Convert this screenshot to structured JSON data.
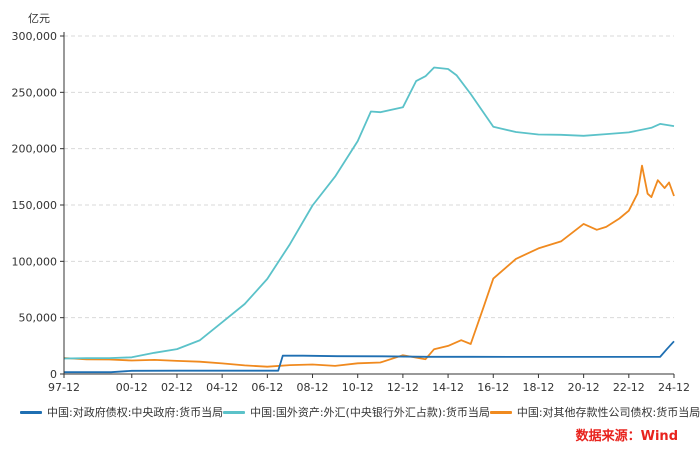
{
  "chart_data": {
    "type": "line",
    "unit": "亿元",
    "colors": {
      "gov": "#1f6fb2",
      "fx": "#5bc2c9",
      "other": "#f08a1f"
    },
    "ylim": [
      0,
      300000
    ],
    "yticks": [
      0,
      50000,
      100000,
      150000,
      200000,
      250000,
      300000
    ],
    "ytick_labels": [
      "0",
      "50,000",
      "100,000",
      "150,000",
      "200,000",
      "250,000",
      "300,000"
    ],
    "xlim": [
      1997.917,
      2024.917
    ],
    "xtick_values": [
      1997.917,
      2000.917,
      2002.917,
      2004.917,
      2006.917,
      2008.917,
      2010.917,
      2012.917,
      2014.917,
      2016.917,
      2018.917,
      2020.917,
      2022.917,
      2024.917
    ],
    "xtick_labels": [
      "97-12",
      "00-12",
      "02-12",
      "04-12",
      "06-12",
      "08-12",
      "10-12",
      "12-12",
      "14-12",
      "16-12",
      "18-12",
      "20-12",
      "22-12",
      "24-12"
    ],
    "series": [
      {
        "key": "gov",
        "name": "中国:对政府债权:中央政府:货币当局",
        "points": [
          [
            1997.917,
            1600
          ],
          [
            2000.0,
            1600
          ],
          [
            2000.917,
            2800
          ],
          [
            2003.0,
            2900
          ],
          [
            2006.5,
            2900
          ],
          [
            2007.4,
            2900
          ],
          [
            2007.6,
            16300
          ],
          [
            2008.5,
            16200
          ],
          [
            2010.0,
            15800
          ],
          [
            2012.0,
            15700
          ],
          [
            2014.0,
            15300
          ],
          [
            2016.0,
            15300
          ],
          [
            2018.0,
            15200
          ],
          [
            2020.0,
            15200
          ],
          [
            2022.0,
            15200
          ],
          [
            2024.3,
            15200
          ],
          [
            2024.6,
            22000
          ],
          [
            2024.917,
            29000
          ]
        ]
      },
      {
        "key": "fx",
        "name": "中国:国外资产:外汇(中央银行外汇占款):货币当局",
        "points": [
          [
            1997.917,
            13800
          ],
          [
            1998.917,
            14000
          ],
          [
            1999.917,
            14100
          ],
          [
            2000.917,
            14800
          ],
          [
            2001.917,
            18800
          ],
          [
            2002.917,
            22100
          ],
          [
            2003.917,
            29800
          ],
          [
            2004.917,
            45900
          ],
          [
            2005.917,
            62100
          ],
          [
            2006.917,
            84400
          ],
          [
            2007.917,
            115200
          ],
          [
            2008.917,
            149600
          ],
          [
            2009.917,
            175200
          ],
          [
            2010.917,
            206700
          ],
          [
            2011.5,
            233000
          ],
          [
            2011.917,
            232400
          ],
          [
            2012.917,
            236700
          ],
          [
            2013.5,
            260000
          ],
          [
            2013.917,
            264300
          ],
          [
            2014.3,
            272000
          ],
          [
            2014.917,
            270700
          ],
          [
            2015.3,
            265000
          ],
          [
            2015.917,
            248500
          ],
          [
            2016.917,
            219400
          ],
          [
            2017.917,
            214800
          ],
          [
            2018.917,
            212600
          ],
          [
            2019.917,
            212300
          ],
          [
            2020.917,
            211400
          ],
          [
            2021.917,
            212900
          ],
          [
            2022.917,
            214400
          ],
          [
            2023.917,
            218500
          ],
          [
            2024.3,
            222000
          ],
          [
            2024.917,
            220000
          ]
        ]
      },
      {
        "key": "other",
        "name": "中国:对其他存款性公司债权:货币当局",
        "points": [
          [
            1997.917,
            14200
          ],
          [
            1998.917,
            13000
          ],
          [
            1999.917,
            12900
          ],
          [
            2000.917,
            12000
          ],
          [
            2001.917,
            12500
          ],
          [
            2002.917,
            11600
          ],
          [
            2003.917,
            10900
          ],
          [
            2004.917,
            9400
          ],
          [
            2005.917,
            7600
          ],
          [
            2006.917,
            6500
          ],
          [
            2007.917,
            7900
          ],
          [
            2008.917,
            8400
          ],
          [
            2009.917,
            7200
          ],
          [
            2010.917,
            9500
          ],
          [
            2011.917,
            10200
          ],
          [
            2012.917,
            16700
          ],
          [
            2013.917,
            13100
          ],
          [
            2014.3,
            22000
          ],
          [
            2014.917,
            24900
          ],
          [
            2015.5,
            30000
          ],
          [
            2015.917,
            26600
          ],
          [
            2016.5,
            60000
          ],
          [
            2016.917,
            84700
          ],
          [
            2017.917,
            102200
          ],
          [
            2018.917,
            111500
          ],
          [
            2019.917,
            117700
          ],
          [
            2020.917,
            133200
          ],
          [
            2021.5,
            128000
          ],
          [
            2021.917,
            130600
          ],
          [
            2022.5,
            138000
          ],
          [
            2022.917,
            144900
          ],
          [
            2023.3,
            160000
          ],
          [
            2023.5,
            185000
          ],
          [
            2023.75,
            160000
          ],
          [
            2023.917,
            157000
          ],
          [
            2024.2,
            172000
          ],
          [
            2024.5,
            165000
          ],
          [
            2024.7,
            170000
          ],
          [
            2024.917,
            158000
          ]
        ]
      }
    ],
    "legend": [
      "中国:对政府债权:中央政府:货币当局",
      "中国:国外资产:外汇(中央银行外汇占款):货币当局",
      "中国:对其他存款性公司债权:货币当局"
    ],
    "source": "数据来源：Wind"
  }
}
